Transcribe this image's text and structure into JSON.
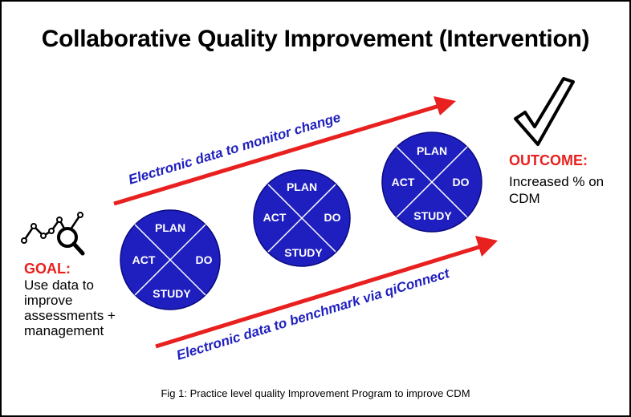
{
  "title": "Collaborative Quality Improvement (Intervention)",
  "goal": {
    "label": "GOAL:",
    "text": "Use data to improve assessments + management"
  },
  "outcome": {
    "label": "OUTCOME:",
    "text": "Increased % on CDM"
  },
  "arrows": {
    "top_label": "Electronic data to monitor change",
    "bottom_label": "Electronic data to benchmark via qiConnect"
  },
  "cycles": [
    {
      "plan": "PLAN",
      "do": "DO",
      "study": "STUDY",
      "act": "ACT"
    },
    {
      "plan": "PLAN",
      "do": "DO",
      "study": "STUDY",
      "act": "ACT"
    },
    {
      "plan": "PLAN",
      "do": "DO",
      "study": "STUDY",
      "act": "ACT"
    }
  ],
  "caption": "Fig 1: Practice level quality Improvement Program to improve CDM",
  "colors": {
    "arrow": "#e8201f",
    "cycle_fill": "#1f1fbf",
    "arrow_text": "#1f1fbf",
    "label_red": "#e8201f"
  },
  "icons": [
    "analytics-magnifier-icon",
    "checkmark-icon"
  ]
}
